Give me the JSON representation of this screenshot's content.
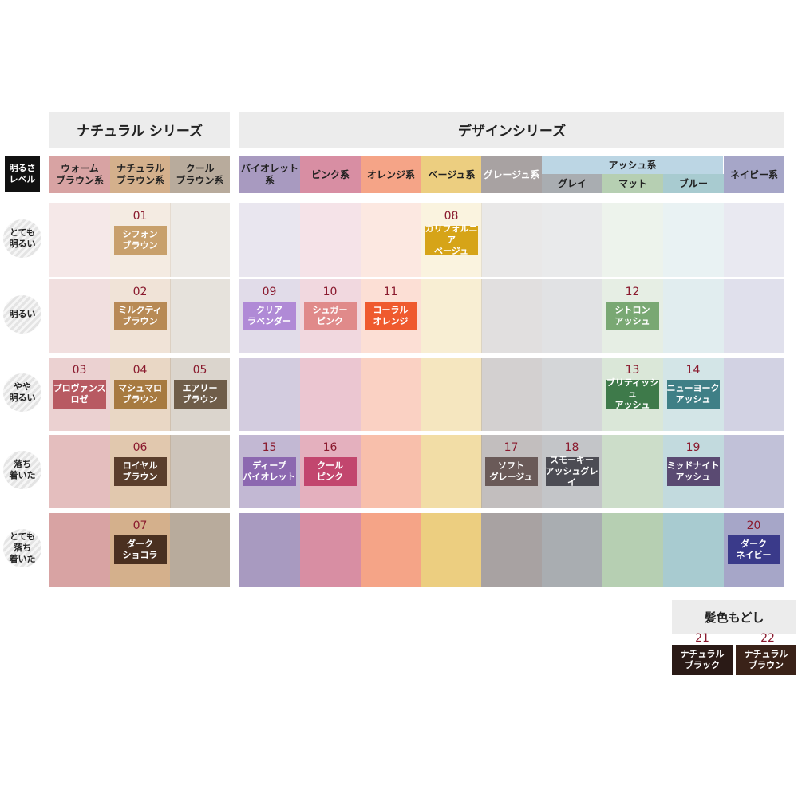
{
  "series": {
    "natural": "ナチュラル シリーズ",
    "design": "デザインシリーズ"
  },
  "level_header": "明るさ\nレベル",
  "columns": [
    {
      "id": "warm",
      "label": "ウォーム\nブラウン系",
      "color": "#d8a3a3"
    },
    {
      "id": "natural",
      "label": "ナチュラル\nブラウン系",
      "color": "#d4b08c"
    },
    {
      "id": "cool",
      "label": "クール\nブラウン系",
      "color": "#b8ab9c"
    },
    {
      "id": "violet",
      "label": "バイオレット系",
      "color": "#a89ac0"
    },
    {
      "id": "pink",
      "label": "ピンク系",
      "color": "#d88ea3"
    },
    {
      "id": "orange",
      "label": "オレンジ系",
      "color": "#f5a487"
    },
    {
      "id": "beige",
      "label": "ベージュ系",
      "color": "#ecce80"
    },
    {
      "id": "greige",
      "label": "グレージュ系",
      "color": "#a8a2a2"
    },
    {
      "id": "gray",
      "label": "グレイ",
      "color": "#a9adb1"
    },
    {
      "id": "matte",
      "label": "マット",
      "color": "#b6cfb2"
    },
    {
      "id": "blue",
      "label": "ブルー",
      "color": "#a8cbd0"
    },
    {
      "id": "navy",
      "label": "ネイビー系",
      "color": "#a6a6c8"
    }
  ],
  "ash_group_label": "アッシュ系",
  "ash_group_color": "#bcd6e4",
  "levels": [
    {
      "label": "とても\n明るい"
    },
    {
      "label": "明るい"
    },
    {
      "label": "やや\n明るい"
    },
    {
      "label": "落ち\n着いた"
    },
    {
      "label": "とても\n落ち\n着いた"
    }
  ],
  "products": [
    {
      "num": "01",
      "name": "シフォン\nブラウン",
      "col": 1,
      "row": 0,
      "color": "#c8a06c"
    },
    {
      "num": "02",
      "name": "ミルクティ\nブラウン",
      "col": 1,
      "row": 1,
      "color": "#b88a55"
    },
    {
      "num": "03",
      "name": "プロヴァンス\nロゼ",
      "col": 0,
      "row": 2,
      "color": "#b85a62"
    },
    {
      "num": "04",
      "name": "マシュマロ\nブラウン",
      "col": 1,
      "row": 2,
      "color": "#a77a40"
    },
    {
      "num": "05",
      "name": "エアリー\nブラウン",
      "col": 2,
      "row": 2,
      "color": "#6f5d49"
    },
    {
      "num": "06",
      "name": "ロイヤル\nブラウン",
      "col": 1,
      "row": 3,
      "color": "#5a3e2c"
    },
    {
      "num": "07",
      "name": "ダーク\nショコラ",
      "col": 1,
      "row": 4,
      "color": "#4a3020"
    },
    {
      "num": "08",
      "name": "カリフォルニア\nベージュ",
      "col": 6,
      "row": 0,
      "color": "#d6a418"
    },
    {
      "num": "09",
      "name": "クリア\nラベンダー",
      "col": 3,
      "row": 1,
      "color": "#b08ad6"
    },
    {
      "num": "10",
      "name": "シュガー\nピンク",
      "col": 4,
      "row": 1,
      "color": "#e08a8a"
    },
    {
      "num": "11",
      "name": "コーラル\nオレンジ",
      "col": 5,
      "row": 1,
      "color": "#ef5a2e"
    },
    {
      "num": "12",
      "name": "シトロン\nアッシュ",
      "col": 9,
      "row": 1,
      "color": "#79a873"
    },
    {
      "num": "13",
      "name": "ブリティッシュ\nアッシュ",
      "col": 9,
      "row": 2,
      "color": "#3e7a4a"
    },
    {
      "num": "14",
      "name": "ニューヨーク\nアッシュ",
      "col": 10,
      "row": 2,
      "color": "#3f7f86"
    },
    {
      "num": "15",
      "name": "ディープ\nバイオレット",
      "col": 3,
      "row": 3,
      "color": "#8c68b0"
    },
    {
      "num": "16",
      "name": "クール\nピンク",
      "col": 4,
      "row": 3,
      "color": "#c2466e"
    },
    {
      "num": "17",
      "name": "ソフト\nグレージュ",
      "col": 7,
      "row": 3,
      "color": "#6a5a58"
    },
    {
      "num": "18",
      "name": "スモーキー\nアッシュグレイ",
      "col": 8,
      "row": 3,
      "color": "#4c4c54"
    },
    {
      "num": "19",
      "name": "ミッドナイト\nアッシュ",
      "col": 10,
      "row": 3,
      "color": "#5a4a72"
    },
    {
      "num": "20",
      "name": "ダーク\nネイビー",
      "col": 11,
      "row": 4,
      "color": "#3a3a8a"
    }
  ],
  "restore": {
    "title": "髪色もどし",
    "items": [
      {
        "num": "21",
        "name": "ナチュラル\nブラック",
        "color": "#2a1a16"
      },
      {
        "num": "22",
        "name": "ナチュラル\nブラウン",
        "color": "#3a2218"
      }
    ]
  }
}
